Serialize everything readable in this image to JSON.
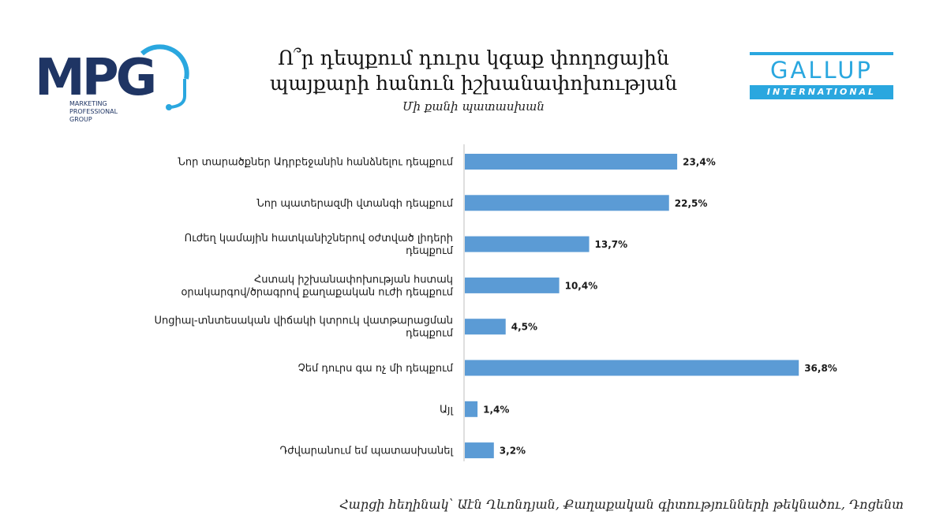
{
  "header": {
    "title_line1": "Ո՞ր դեպքում դուրս կգաք փողոցային",
    "title_line2": "պայքարի հանուն իշխանափոխության",
    "subtitle": "Մի քանի պատասխան"
  },
  "logos": {
    "mpg": {
      "mark": "MPG",
      "sub1": "MARKETING",
      "sub2": "PROFESSIONAL",
      "sub3": "GROUP"
    },
    "gallup": {
      "word": "GALLUP",
      "band": "INTERNATIONAL"
    }
  },
  "colors": {
    "bar": "#5b9bd5",
    "mpg_navy": "#1f3564",
    "mpg_blue": "#2aa7df",
    "gallup_blue": "#2aa7df"
  },
  "chart_data": {
    "type": "bar",
    "orientation": "horizontal",
    "categories": [
      [
        "Նոր տարածքներ Ադրբեջանին հանձնելու դեպքում"
      ],
      [
        "Նոր պատերազմի վտանգի դեպքում"
      ],
      [
        "Ուժեղ կամային հատկանիշներով օժտված լիդերի",
        "դեպքում"
      ],
      [
        "Հստակ իշխանափոխության հստակ",
        "օրակարգով/ծրագրով քաղաքական ուժի դեպքում"
      ],
      [
        "Սոցիալ-տնտեսական վիճակի կտրուկ վատթարացման",
        "դեպքում"
      ],
      [
        "Չեմ դուրս գա ոչ մի դեպքում"
      ],
      [
        "Այլ"
      ],
      [
        "Դժվարանում եմ պատասխանել"
      ]
    ],
    "values": [
      23.4,
      22.5,
      13.7,
      10.4,
      4.5,
      36.8,
      1.4,
      3.2
    ],
    "data_labels": [
      "23,4%",
      "22,5%",
      "13,7%",
      "10,4%",
      "4,5%",
      "36,8%",
      "1,4%",
      "3,2%"
    ],
    "xlim": [
      0,
      40
    ],
    "grid": false,
    "legend": "none"
  },
  "footer": {
    "text": "Հարցի հեղինակ՝ Աէն Ղևոնդյան, Քաղաքական գիտությունների թեկնածու, Դոցենտ"
  }
}
